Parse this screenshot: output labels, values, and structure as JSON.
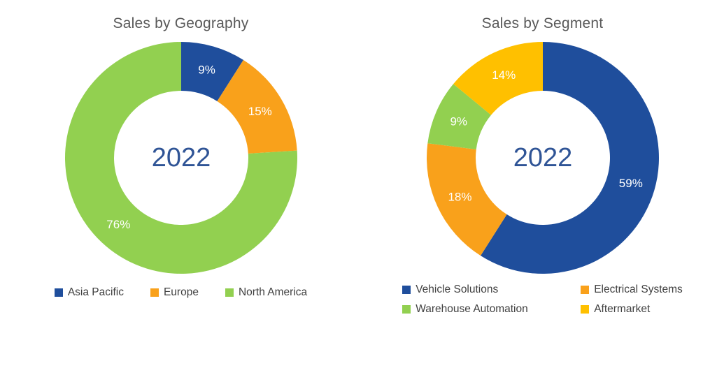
{
  "page": {
    "background": "#FFFFFF"
  },
  "text_colors": {
    "title": "#595959",
    "center_label": "#2F5496",
    "slice_label": "#FFFFFF",
    "legend": "#404040"
  },
  "chart_data": [
    {
      "type": "pie",
      "subtype": "donut",
      "title": "Sales by Geography",
      "center_label": "2022",
      "legend_position": "bottom",
      "slices": [
        {
          "label": "Asia Pacific",
          "value": 9,
          "pct_label": "9%",
          "color": "#1F4E9C"
        },
        {
          "label": "Europe",
          "value": 15,
          "pct_label": "15%",
          "color": "#F9A11B"
        },
        {
          "label": "North America",
          "value": 76,
          "pct_label": "76%",
          "color": "#92D050"
        }
      ]
    },
    {
      "type": "pie",
      "subtype": "donut",
      "title": "Sales by Segment",
      "center_label": "2022",
      "legend_position": "bottom",
      "slices": [
        {
          "label": "Vehicle Solutions",
          "value": 59,
          "pct_label": "59%",
          "color": "#1F4E9C"
        },
        {
          "label": "Electrical Systems",
          "value": 18,
          "pct_label": "18%",
          "color": "#F9A11B"
        },
        {
          "label": "Warehouse Automation",
          "value": 9,
          "pct_label": "9%",
          "color": "#92D050"
        },
        {
          "label": "Aftermarket",
          "value": 14,
          "pct_label": "14%",
          "color": "#FFC000"
        }
      ]
    }
  ]
}
